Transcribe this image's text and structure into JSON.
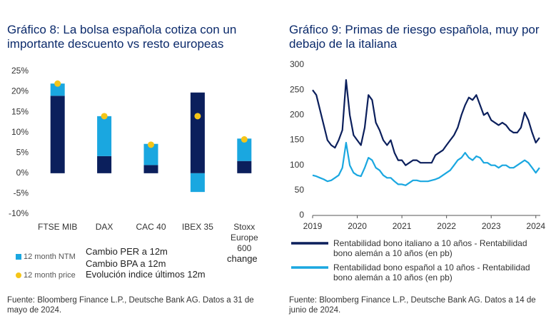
{
  "chart_data": [
    {
      "type": "bar",
      "title": "Gráfico 8: La bolsa española cotiza con un importante descuento vs resto europeas",
      "categories": [
        "FTSE MIB",
        "DAX",
        "CAC 40",
        "IBEX 35",
        "Stoxx Europe 600"
      ],
      "series": [
        {
          "color": "#0b1f5c",
          "values": [
            19,
            4.2,
            2,
            19.8,
            3
          ]
        },
        {
          "name": "12 month NTM",
          "color": "#1aa7e0",
          "values": [
            3,
            9.8,
            5.2,
            -4.6,
            5.5
          ]
        },
        {
          "name": "12 month price",
          "color": "#f5c518",
          "marker": "dot",
          "values": [
            22,
            14,
            7,
            14,
            8.3
          ]
        }
      ],
      "annotations": [
        "Cambio PER a 12m",
        "Cambio BPA a 12m",
        "change",
        "Evolución indice últimos 12m"
      ],
      "ylim": [
        -10,
        25
      ],
      "yticks": [
        {
          "value": -10,
          "label": "-10%"
        },
        {
          "value": -5,
          "label": "-5%"
        },
        {
          "value": 0,
          "label": "0%"
        },
        {
          "value": 5,
          "label": "5%"
        },
        {
          "value": 10,
          "label": "10%"
        },
        {
          "value": 15,
          "label": "15%"
        },
        {
          "value": 20,
          "label": "20%"
        },
        {
          "value": 25,
          "label": "25%"
        }
      ],
      "source": "Fuente: Bloomberg Finance L.P., Deutsche Bank AG. Datos a 31 de mayo de 2024."
    },
    {
      "type": "line",
      "title": "Gráfico 9: Primas de riesgo española, muy por debajo de la italiana",
      "x": [
        2019,
        2019.083,
        2019.167,
        2019.25,
        2019.333,
        2019.417,
        2019.5,
        2019.583,
        2019.667,
        2019.75,
        2019.833,
        2019.917,
        2020,
        2020.083,
        2020.167,
        2020.25,
        2020.333,
        2020.417,
        2020.5,
        2020.583,
        2020.667,
        2020.75,
        2020.833,
        2020.917,
        2021,
        2021.083,
        2021.167,
        2021.25,
        2021.333,
        2021.417,
        2021.5,
        2021.583,
        2021.667,
        2021.75,
        2021.833,
        2021.917,
        2022,
        2022.083,
        2022.167,
        2022.25,
        2022.333,
        2022.417,
        2022.5,
        2022.583,
        2022.667,
        2022.75,
        2022.833,
        2022.917,
        2023,
        2023.083,
        2023.167,
        2023.25,
        2023.333,
        2023.417,
        2023.5,
        2023.583,
        2023.667,
        2023.75,
        2023.833,
        2023.917,
        2024,
        2024.083
      ],
      "series": [
        {
          "name": "Rentabilidad bono italiano a 10 años - Rentabilidad bono alemán a 10 años (en pb)",
          "color": "#0b1f5c",
          "values": [
            250,
            240,
            210,
            180,
            150,
            140,
            135,
            150,
            170,
            270,
            200,
            160,
            150,
            140,
            175,
            240,
            230,
            185,
            170,
            150,
            140,
            150,
            125,
            110,
            110,
            100,
            105,
            110,
            110,
            105,
            105,
            105,
            105,
            120,
            125,
            130,
            140,
            150,
            160,
            175,
            200,
            220,
            235,
            230,
            240,
            220,
            200,
            205,
            190,
            185,
            180,
            185,
            180,
            170,
            165,
            165,
            175,
            205,
            190,
            165,
            145,
            155
          ]
        },
        {
          "name": "Rentabilidad bono español a 10 años - Rentabilidad bono alemán a 10 años (en pb)",
          "color": "#1aa7e0",
          "values": [
            80,
            78,
            75,
            72,
            68,
            70,
            75,
            80,
            95,
            145,
            100,
            85,
            80,
            78,
            95,
            115,
            110,
            95,
            90,
            80,
            75,
            75,
            68,
            62,
            62,
            60,
            65,
            70,
            70,
            68,
            68,
            68,
            70,
            72,
            75,
            80,
            85,
            90,
            100,
            110,
            115,
            125,
            115,
            110,
            118,
            115,
            105,
            105,
            100,
            100,
            95,
            100,
            100,
            95,
            95,
            100,
            105,
            110,
            105,
            95,
            85,
            95
          ]
        }
      ],
      "xlim": [
        2019,
        2024.1
      ],
      "xticks": [
        2019,
        2020,
        2021,
        2022,
        2023,
        2024
      ],
      "ylim": [
        0,
        300
      ],
      "yticks": [
        0,
        50,
        100,
        150,
        200,
        250,
        300
      ],
      "source": "Fuente: Bloomberg Finance L.P., Deutsche Bank AG. Datos a 14 de junio de 2024."
    }
  ]
}
